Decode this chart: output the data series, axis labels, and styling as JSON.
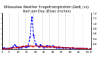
{
  "title": "Milwaukee Weather Evapotranspiration (Red) (vs) Rain per Day (Blue) (Inches)",
  "title_fontsize": 3.5,
  "background_color": "#ffffff",
  "xlim": [
    1,
    52
  ],
  "ylim": [
    0,
    1.4
  ],
  "tick_fontsize": 2.8,
  "grid_color": "#999999",
  "rain_color": "#0000ff",
  "et_color": "#cc0000",
  "weeks": [
    1,
    2,
    3,
    4,
    5,
    6,
    7,
    8,
    9,
    10,
    11,
    12,
    13,
    14,
    15,
    16,
    17,
    18,
    19,
    20,
    21,
    22,
    23,
    24,
    25,
    26,
    27,
    28,
    29,
    30,
    31,
    32,
    33,
    34,
    35,
    36,
    37,
    38,
    39,
    40,
    41,
    42,
    43,
    44,
    45,
    46,
    47,
    48,
    49,
    50,
    51,
    52
  ],
  "rain": [
    0.03,
    0.05,
    0.02,
    0.04,
    0.03,
    0.06,
    0.08,
    0.18,
    0.12,
    0.06,
    0.07,
    0.05,
    0.12,
    0.1,
    0.08,
    0.12,
    0.5,
    1.25,
    0.55,
    0.22,
    0.15,
    0.1,
    0.18,
    0.12,
    0.07,
    0.1,
    0.14,
    0.12,
    0.1,
    0.13,
    0.1,
    0.07,
    0.07,
    0.05,
    0.07,
    0.06,
    0.05,
    0.07,
    0.06,
    0.04,
    0.05,
    0.04,
    0.04,
    0.03,
    0.03,
    0.04,
    0.03,
    0.02,
    0.03,
    0.02,
    0.02,
    0.01
  ],
  "et": [
    0.02,
    0.02,
    0.02,
    0.03,
    0.03,
    0.04,
    0.05,
    0.06,
    0.07,
    0.08,
    0.09,
    0.1,
    0.11,
    0.12,
    0.13,
    0.13,
    0.13,
    0.12,
    0.12,
    0.13,
    0.13,
    0.12,
    0.12,
    0.11,
    0.11,
    0.11,
    0.1,
    0.1,
    0.11,
    0.1,
    0.09,
    0.09,
    0.09,
    0.08,
    0.08,
    0.07,
    0.07,
    0.06,
    0.06,
    0.05,
    0.05,
    0.05,
    0.04,
    0.04,
    0.04,
    0.03,
    0.03,
    0.03,
    0.02,
    0.02,
    0.02,
    0.02
  ],
  "yticks": [
    0.2,
    0.4,
    0.6,
    0.8,
    1.0,
    1.2,
    1.4
  ],
  "vline_positions": [
    5,
    10,
    14,
    19,
    24,
    28,
    33,
    37,
    42,
    47
  ],
  "xtick_positions": [
    1,
    5,
    10,
    15,
    20,
    25,
    30,
    35,
    40,
    45,
    50,
    52
  ],
  "xtick_labels": [
    "1",
    "5",
    "10",
    "15",
    "20",
    "25",
    "30",
    "35",
    "40",
    "45",
    "50",
    "E"
  ]
}
